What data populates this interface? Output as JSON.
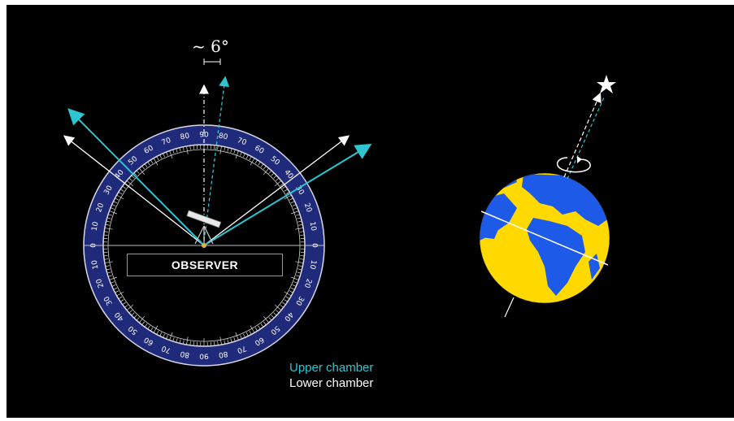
{
  "observer": {
    "label": "OBSERVER"
  },
  "angle_annotation": {
    "text": "~ 6°",
    "value_deg": 6
  },
  "protractor": {
    "upper_ticks": [
      0,
      10,
      20,
      30,
      40,
      50,
      60,
      70,
      80,
      90,
      80,
      70,
      60,
      50,
      40,
      30,
      20,
      10,
      0
    ],
    "lower_ticks": [
      10,
      20,
      30,
      40,
      50,
      60,
      70,
      80,
      90,
      80,
      70,
      60,
      50,
      40,
      30,
      20,
      10
    ]
  },
  "legend": {
    "upper": "Upper chamber",
    "lower": "Lower chamber"
  },
  "colors": {
    "upper": "#2ec4d0",
    "lower": "#ffffff",
    "dial": "#1f2a7a",
    "earth_land": "#1e5ae8",
    "earth_sea": "#ffd900"
  },
  "icons": [
    "telescope-icon",
    "star-icon",
    "rotation-arrow-icon"
  ]
}
